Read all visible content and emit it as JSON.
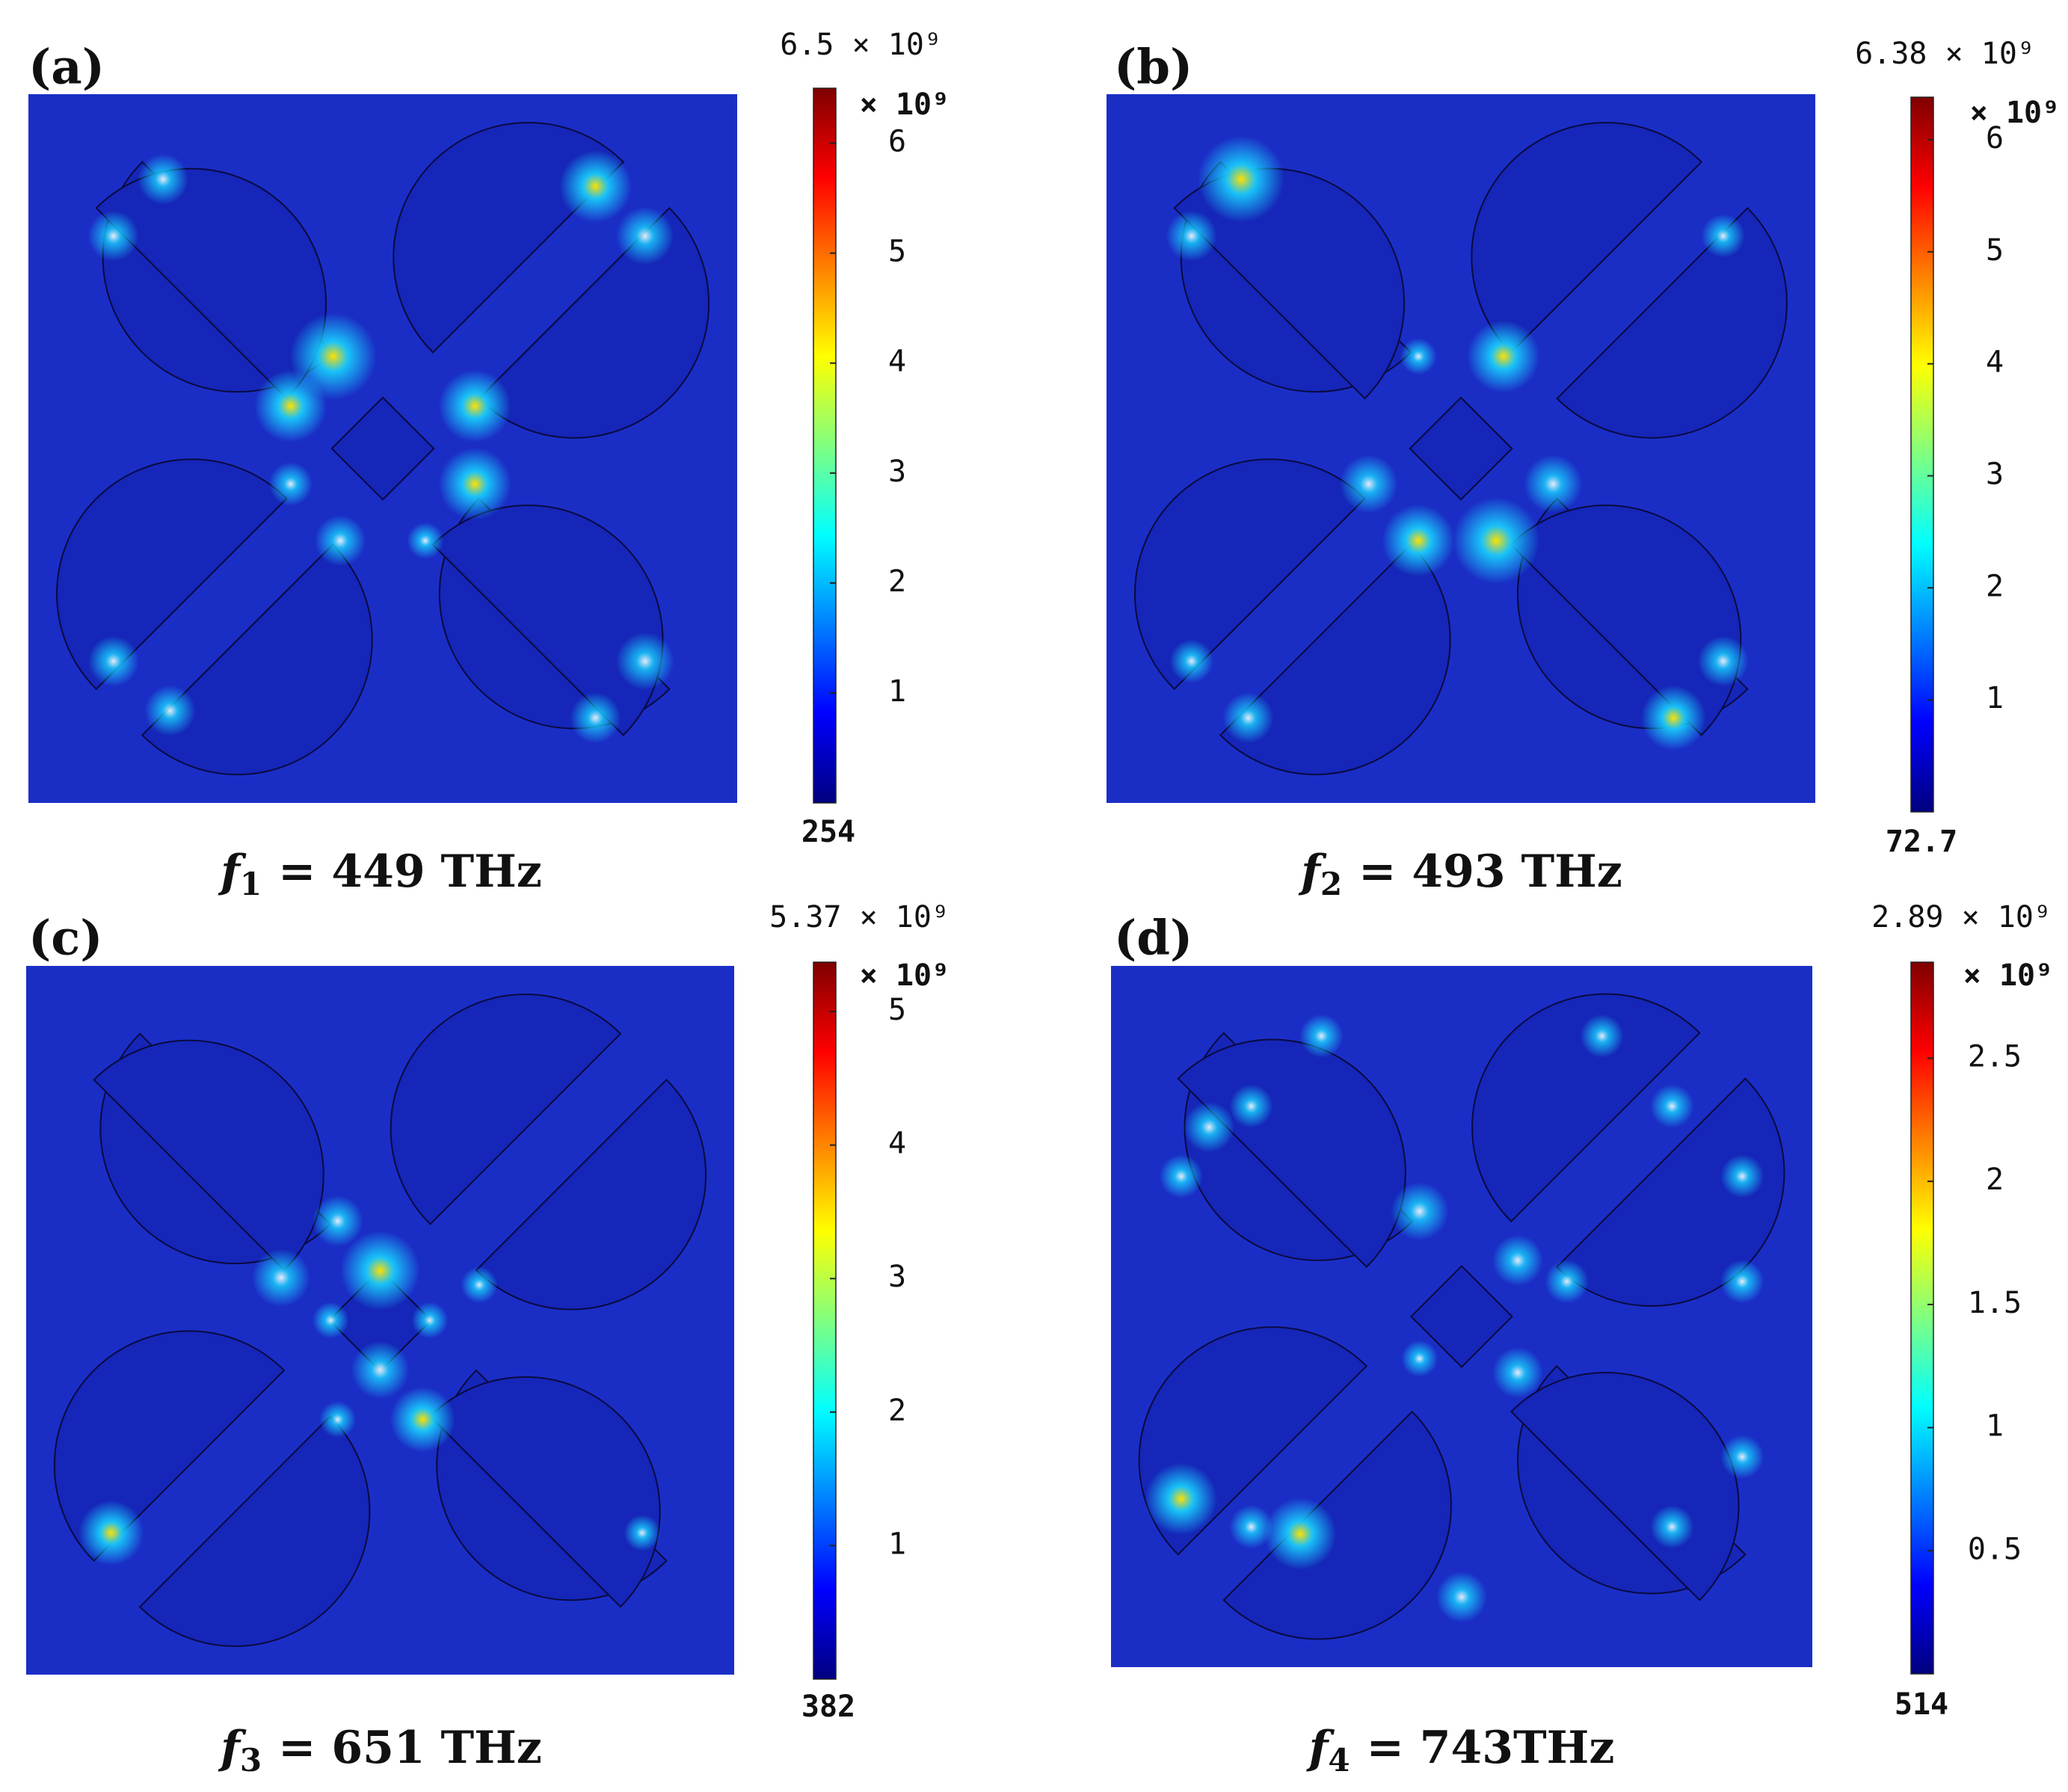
{
  "figure": {
    "colormap": {
      "name": "jet",
      "stops": [
        "#00007f",
        "#0000ff",
        "#0080ff",
        "#00ffff",
        "#80ff80",
        "#ffff00",
        "#ff8000",
        "#ff0000",
        "#7f0000"
      ]
    },
    "field_colors": {
      "background": "#1a2ec6",
      "hot": "#ffe000",
      "warm": "#19d2ff"
    },
    "panels": [
      {
        "id": "a",
        "label": "(a)",
        "max_label": "6.5 × 10⁹",
        "exponent_label": "× 10⁹",
        "min_label": "254",
        "ticks": [
          "6",
          "5",
          "4",
          "3",
          "2",
          "1"
        ],
        "tick_values": [
          6,
          5,
          4,
          3,
          2,
          1
        ],
        "max_value": 6.5,
        "min_value": 2.54e-07,
        "freq_symbol": "f",
        "freq_sub": "1",
        "freq_value": "= 449 THz"
      },
      {
        "id": "b",
        "label": "(b)",
        "max_label": "6.38 × 10⁹",
        "exponent_label": "× 10⁹",
        "min_label": "72.7",
        "ticks": [
          "6",
          "5",
          "4",
          "3",
          "2",
          "1"
        ],
        "tick_values": [
          6,
          5,
          4,
          3,
          2,
          1
        ],
        "max_value": 6.38,
        "min_value": 7.27e-08,
        "freq_symbol": "f",
        "freq_sub": "2",
        "freq_value": "= 493 THz"
      },
      {
        "id": "c",
        "label": "(c)",
        "max_label": "5.37 × 10⁹",
        "exponent_label": "× 10⁹",
        "min_label": "382",
        "ticks": [
          "5",
          "4",
          "3",
          "2",
          "1"
        ],
        "tick_values": [
          5,
          4,
          3,
          2,
          1
        ],
        "max_value": 5.37,
        "min_value": 3.82e-07,
        "freq_symbol": "f",
        "freq_sub": "3",
        "freq_value": "= 651 THz"
      },
      {
        "id": "d",
        "label": "(d)",
        "max_label": "2.89 × 10⁹",
        "exponent_label": "× 10⁹",
        "min_label": "514",
        "ticks": [
          "2.5",
          "2",
          "1.5",
          "1",
          "0.5"
        ],
        "tick_values": [
          2.5,
          2,
          1.5,
          1,
          0.5
        ],
        "max_value": 2.89,
        "min_value": 5.14e-07,
        "freq_symbol": "f",
        "freq_sub": "4",
        "freq_value": "= 743THz"
      }
    ]
  }
}
